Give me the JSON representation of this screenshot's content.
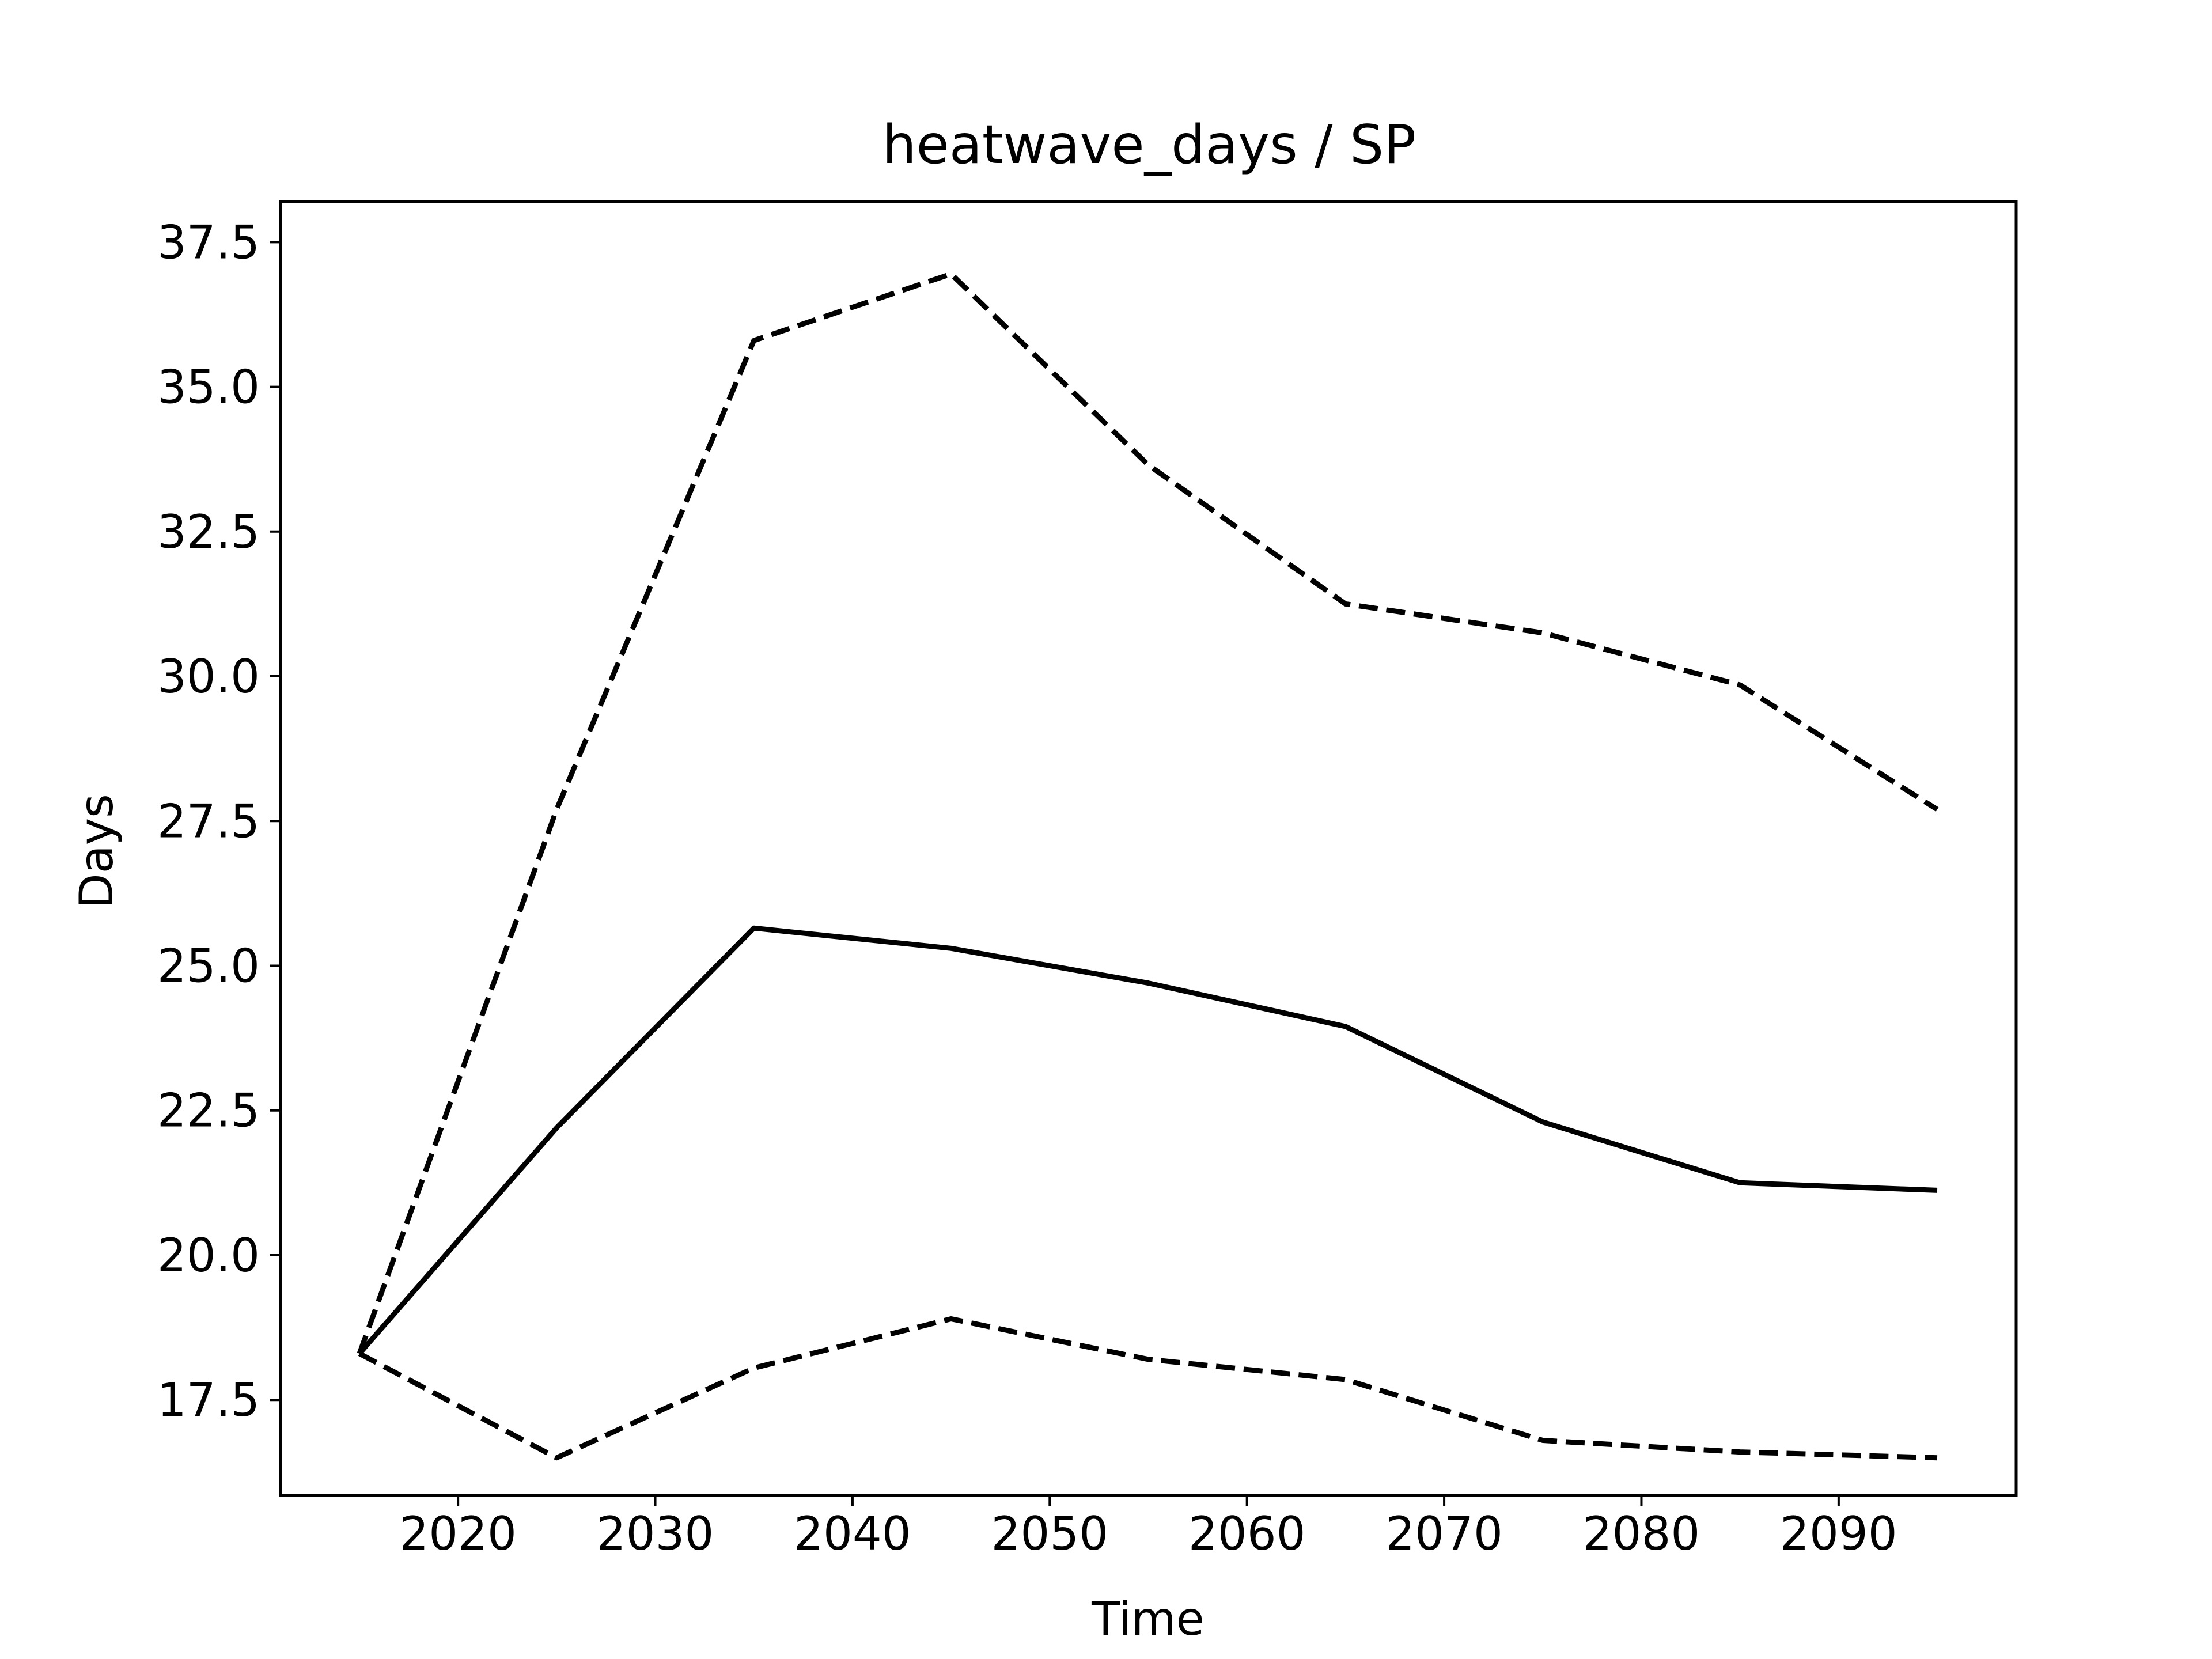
{
  "chart_data": {
    "type": "line",
    "title": "heatwave_days / SP",
    "xlabel": "Time",
    "ylabel": "Days",
    "xlim": [
      2011,
      2099
    ],
    "ylim": [
      15.85,
      38.2
    ],
    "xticks": [
      2020,
      2030,
      2040,
      2050,
      2060,
      2070,
      2080,
      2090
    ],
    "xtick_labels": [
      "2020",
      "2030",
      "2040",
      "2050",
      "2060",
      "2070",
      "2080",
      "2090"
    ],
    "yticks": [
      17.5,
      20.0,
      22.5,
      25.0,
      27.5,
      30.0,
      32.5,
      35.0,
      37.5
    ],
    "ytick_labels": [
      "17.5",
      "20.0",
      "22.5",
      "25.0",
      "27.5",
      "30.0",
      "32.5",
      "35.0",
      "37.5"
    ],
    "grid": false,
    "x": [
      2015,
      2025,
      2035,
      2045,
      2055,
      2065,
      2075,
      2085,
      2095
    ],
    "series": [
      {
        "style": "dashed",
        "color": "#000000",
        "values": [
          18.3,
          27.7,
          35.8,
          36.95,
          33.65,
          31.25,
          30.75,
          29.85,
          27.7
        ]
      },
      {
        "style": "solid",
        "color": "#000000",
        "values": [
          18.3,
          22.2,
          25.65,
          25.3,
          24.7,
          23.95,
          22.3,
          21.25,
          21.12
        ]
      },
      {
        "style": "dashed",
        "color": "#000000",
        "values": [
          18.3,
          16.5,
          18.05,
          18.9,
          18.2,
          17.85,
          16.8,
          16.6,
          16.5
        ]
      }
    ]
  }
}
